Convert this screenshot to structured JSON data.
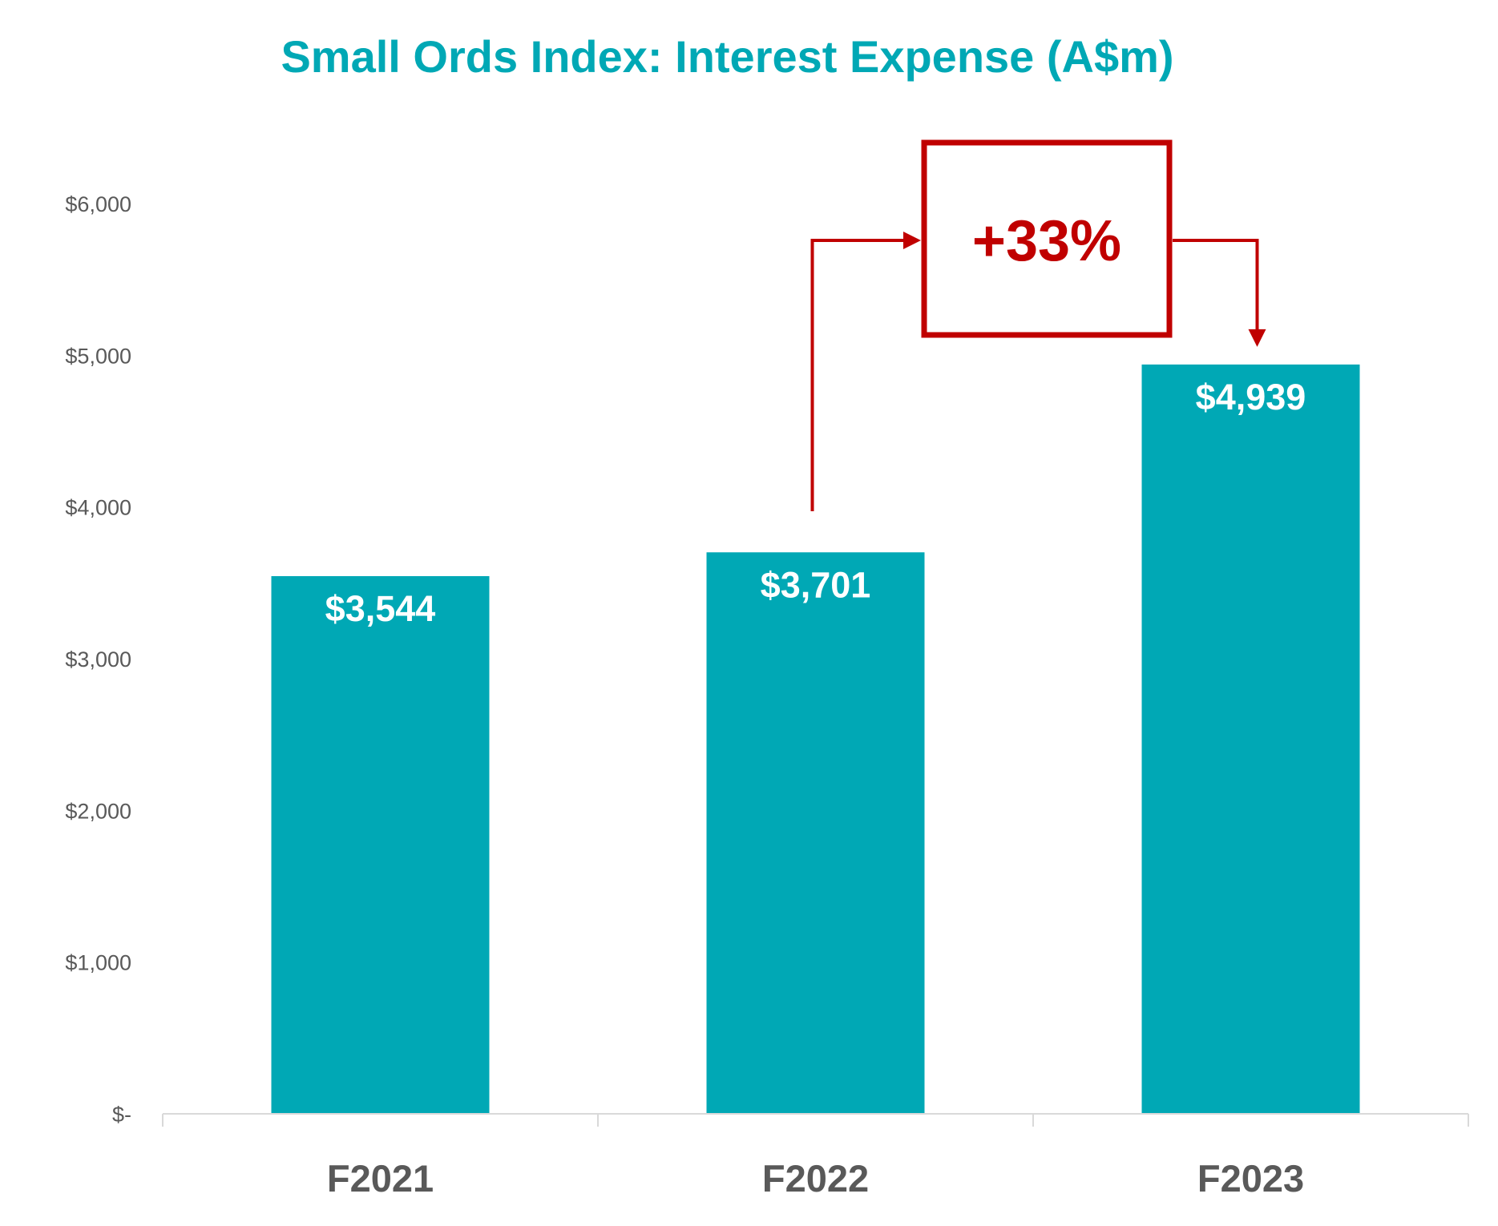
{
  "chart_data": {
    "type": "bar",
    "title": "Small Ords Index: Interest Expense (A$m)",
    "categories": [
      "F2021",
      "F2022",
      "F2023"
    ],
    "values": [
      3544,
      3701,
      4939
    ],
    "value_labels": [
      "$3,544",
      "$3,701",
      "$4,939"
    ],
    "ylim": [
      0,
      6000
    ],
    "yticks": [
      0,
      1000,
      2000,
      3000,
      4000,
      5000,
      6000
    ],
    "ytick_labels": [
      "$-",
      "$1,000",
      "$2,000",
      "$3,000",
      "$4,000",
      "$5,000",
      "$6,000"
    ],
    "xlabel": "",
    "ylabel": "",
    "grid": false,
    "legend": "none",
    "annotation": {
      "text": "+33%",
      "from": "F2022",
      "to": "F2023"
    }
  },
  "colors": {
    "bar": "#00A8B5",
    "title": "#00A8B5",
    "annotation": "#C00000",
    "axis_text": "#595959",
    "axis_line": "#D9D9D9"
  }
}
